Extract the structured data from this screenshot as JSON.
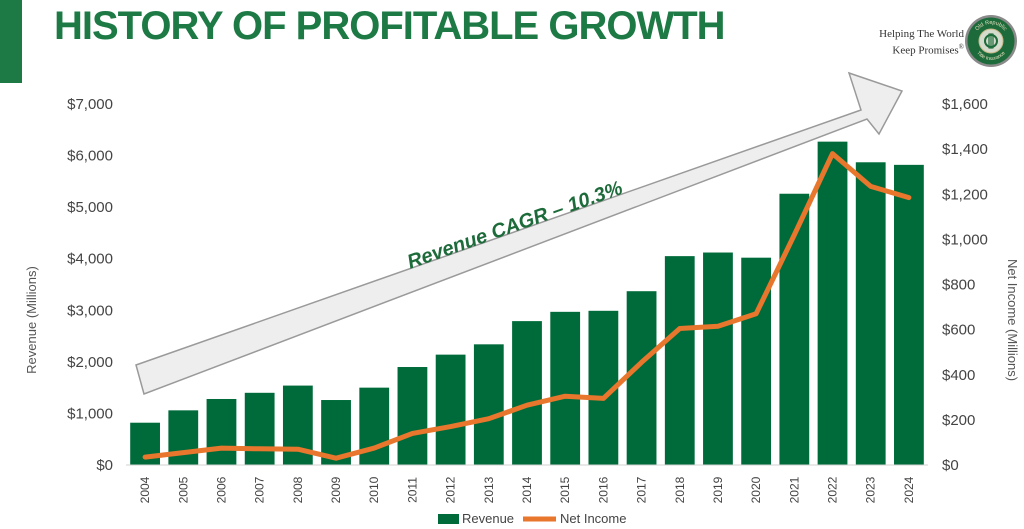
{
  "header": {
    "title": "HISTORY OF PROFITABLE GROWTH",
    "tagline_line1": "Helping The World",
    "tagline_line2": "Keep Promises",
    "tagline_mark": "®",
    "logo_text_top": "Old Republic",
    "logo_text_bottom": "Title Insurance",
    "brand_green": "#1d7a45"
  },
  "chart_data": {
    "type": "bar",
    "title": "HISTORY OF PROFITABLE GROWTH",
    "categories": [
      "2004",
      "2005",
      "2006",
      "2007",
      "2008",
      "2009",
      "2010",
      "2011",
      "2012",
      "2013",
      "2014",
      "2015",
      "2016",
      "2017",
      "2018",
      "2019",
      "2020",
      "2021",
      "2022",
      "2023",
      "2024"
    ],
    "series": [
      {
        "name": "Revenue",
        "type": "bar",
        "axis": "left",
        "color": "#006b3a",
        "values": [
          820,
          1060,
          1280,
          1400,
          1540,
          1260,
          1500,
          1900,
          2140,
          2340,
          2790,
          2970,
          2990,
          3370,
          4050,
          4120,
          4020,
          5260,
          6270,
          5870,
          5820
        ]
      },
      {
        "name": "Net Income",
        "type": "line",
        "axis": "right",
        "color": "#e8762d",
        "values": [
          35,
          55,
          75,
          72,
          70,
          30,
          75,
          140,
          170,
          205,
          265,
          305,
          295,
          455,
          605,
          615,
          670,
          1020,
          1380,
          1235,
          1185
        ]
      }
    ],
    "ylabel": "Revenue (Millions)",
    "y2label": "Net Income (Millions)",
    "ylim": [
      0,
      7000
    ],
    "y2lim": [
      0,
      1600
    ],
    "yticks": [
      "$0",
      "$1,000",
      "$2,000",
      "$3,000",
      "$4,000",
      "$5,000",
      "$6,000",
      "$7,000"
    ],
    "y2ticks": [
      "$0",
      "$200",
      "$400",
      "$600",
      "$800",
      "$1,000",
      "$1,200",
      "$1,400",
      "$1,600"
    ],
    "annotation": "Revenue CAGR – 10.3%",
    "legend": [
      {
        "label": "Revenue",
        "color": "#006b3a"
      },
      {
        "label": "Net Income",
        "color": "#e8762d"
      }
    ],
    "legend_position": "bottom-center",
    "grid": false
  }
}
